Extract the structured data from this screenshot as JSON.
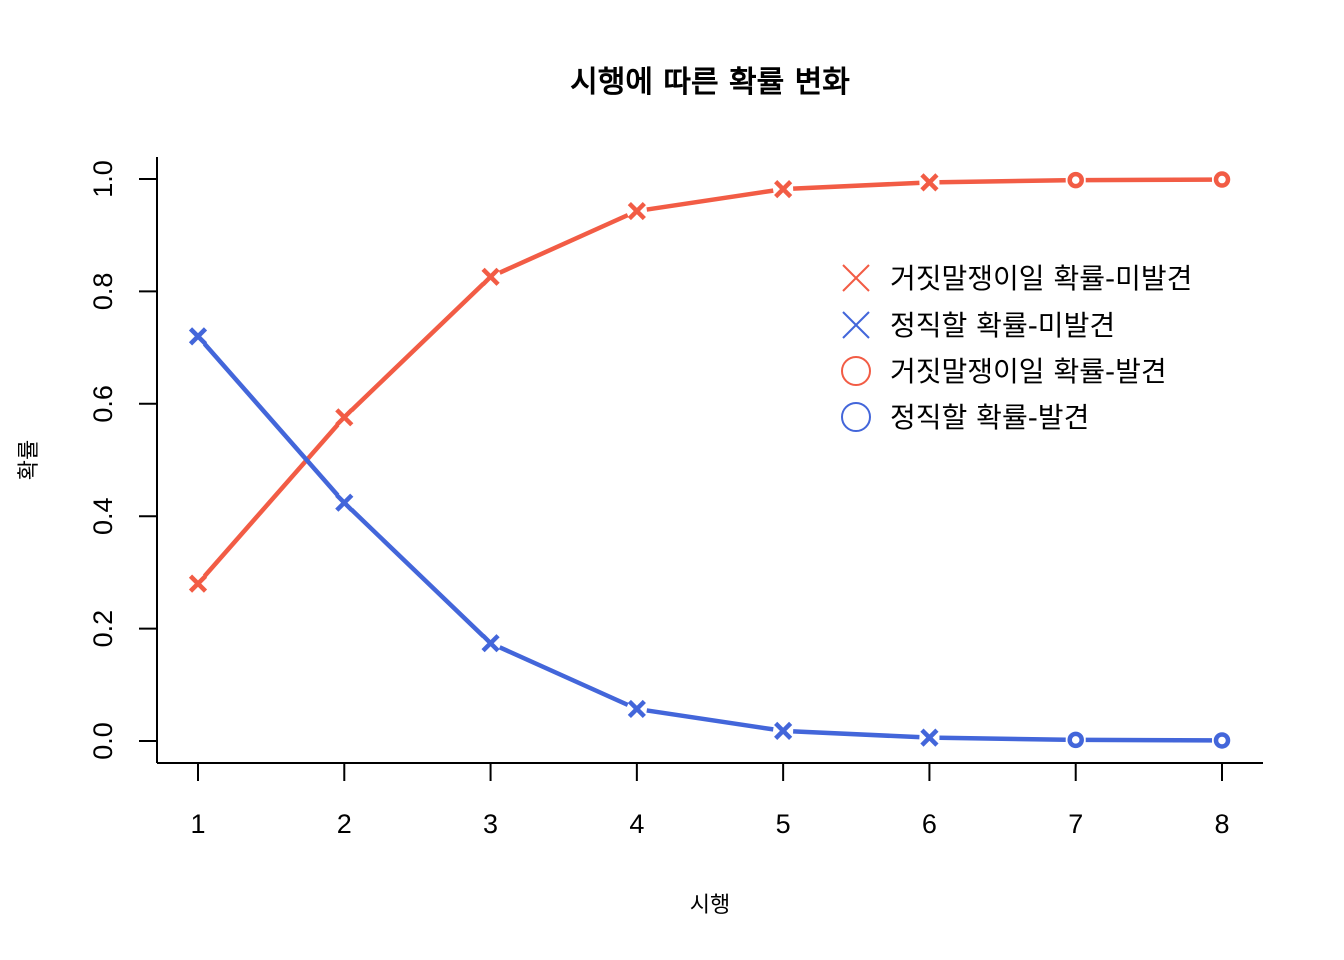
{
  "chart_data": {
    "type": "line",
    "title": "시행에 따른 확률 변화",
    "xlabel": "시행",
    "ylabel": "확률",
    "x": [
      1,
      2,
      3,
      4,
      5,
      6,
      7,
      8
    ],
    "xticks": [
      "1",
      "2",
      "3",
      "4",
      "5",
      "6",
      "7",
      "8"
    ],
    "yticks": [
      "0.0",
      "0.2",
      "0.4",
      "0.6",
      "0.8",
      "1.0"
    ],
    "ylim": [
      0,
      1
    ],
    "grid": false,
    "legend_position": "top-right",
    "colors": {
      "liar": "#F25C45",
      "honest": "#4366DA"
    },
    "series": [
      {
        "key": "liar",
        "values": [
          0.28,
          0.576,
          0.826,
          0.943,
          0.982,
          0.994,
          0.998,
          0.999
        ]
      },
      {
        "key": "honest",
        "values": [
          0.72,
          0.424,
          0.174,
          0.057,
          0.018,
          0.006,
          0.002,
          0.001
        ]
      }
    ],
    "marker_by_point": [
      "x",
      "x",
      "x",
      "x",
      "x",
      "x",
      "o",
      "o"
    ],
    "legend": [
      {
        "label": "거짓말쟁이일 확률-미발견",
        "marker": "x",
        "series": "liar"
      },
      {
        "label": "정직할 확률-미발견",
        "marker": "x",
        "series": "honest"
      },
      {
        "label": "거짓말쟁이일 확률-발견",
        "marker": "o",
        "series": "liar"
      },
      {
        "label": "정직할 확률-발견",
        "marker": "o",
        "series": "honest"
      }
    ]
  }
}
